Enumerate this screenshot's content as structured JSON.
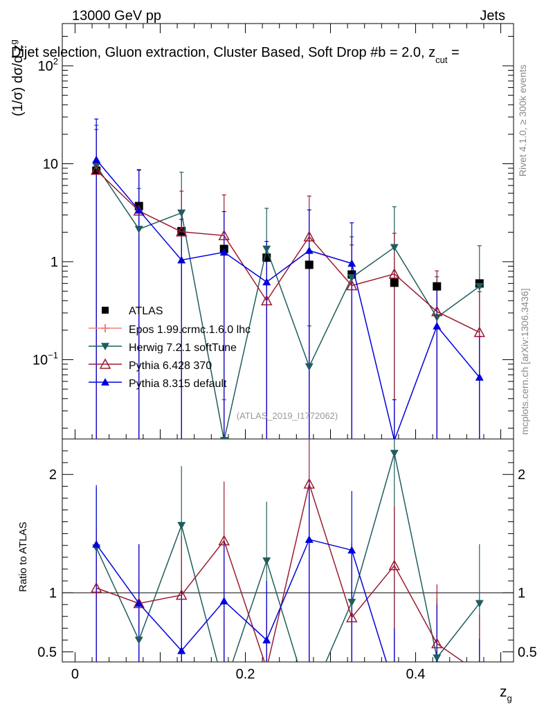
{
  "header": {
    "energy": "13000 GeV pp",
    "category": "Jets",
    "title": "Dijet selection, Gluon extraction, Cluster Based, Soft Drop #b = 2.0, z",
    "title_sub": "cut",
    "title_end": " =",
    "side_label": "Rivet 4.1.0, ≥ 300k events",
    "side_label_bottom": "mcplots.cern.ch [arXiv:1306.3436]",
    "analysis_id": "(ATLAS_2019_I1772062)"
  },
  "axes": {
    "ylabel_main": "(1/σ) dσ/d z",
    "ylabel_main_sub": "g",
    "ylabel_ratio": "Ratio to ATLAS",
    "xlabel": "z",
    "xlabel_sub": "g",
    "main_yticks": [
      {
        "label": "10",
        "sup": "2",
        "value": 100
      },
      {
        "label": "10",
        "sup": "",
        "value": 10
      },
      {
        "label": "1",
        "sup": "",
        "value": 1
      },
      {
        "label": "10",
        "sup": "−1",
        "value": 0.1
      }
    ],
    "ratio_yticks": [
      {
        "label": "2",
        "value": 2
      },
      {
        "label": "1",
        "value": 1
      },
      {
        "label": "0.5",
        "value": 0.5
      }
    ],
    "xticks": [
      {
        "label": "0",
        "value": 0
      },
      {
        "label": "0.2",
        "value": 0.2
      },
      {
        "label": "0.4",
        "value": 0.4
      }
    ]
  },
  "chart_data": {
    "type": "scatter",
    "xlabel": "z_g",
    "ylabel": "(1/σ) dσ/d z_g",
    "xlim": [
      -0.015,
      0.515
    ],
    "ylim": [
      0.0155,
      270
    ],
    "yscale": "log",
    "ratio_ylim": [
      0.415,
      2.3
    ],
    "x": [
      0.025,
      0.075,
      0.125,
      0.175,
      0.225,
      0.275,
      0.325,
      0.375,
      0.425,
      0.475
    ],
    "series": [
      {
        "name": "ATLAS",
        "color": "#000000",
        "marker": "square",
        "values": [
          8.5,
          3.7,
          2.05,
          1.35,
          1.1,
          0.93,
          0.74,
          0.61,
          0.56,
          0.6
        ],
        "ratio": [
          1,
          1,
          1,
          1,
          1,
          1,
          1,
          1,
          1,
          1
        ]
      },
      {
        "name": "Epos 1.99.crmc.1.6.0 lhc",
        "color": "#f08080",
        "marker": "open-cross",
        "values": [],
        "ratio": []
      },
      {
        "name": "Herwig 7.2.1 softTune",
        "color": "#1f5d5d",
        "marker": "triangle-down",
        "values": [
          9.5,
          2.15,
          3.15,
          0.015,
          1.35,
          0.085,
          0.69,
          1.4,
          0.27,
          0.56
        ],
        "ratio": [
          1.38,
          0.6,
          1.57,
          0.2,
          1.27,
          0.09,
          0.92,
          2.18,
          0.45,
          0.91
        ]
      },
      {
        "name": "Pythia 6.428 370",
        "color": "#9b1b30",
        "marker": "open-triangle",
        "values": [
          8.6,
          3.3,
          2.02,
          1.85,
          0.4,
          1.8,
          0.57,
          0.75,
          0.31,
          0.19
        ],
        "ratio": [
          1.04,
          0.91,
          0.98,
          1.44,
          0.36,
          1.92,
          0.79,
          1.23,
          0.57,
          0.32
        ]
      },
      {
        "name": "Pythia 8.315 default",
        "color": "#0000dd",
        "marker": "triangle",
        "values": [
          11.0,
          3.35,
          1.04,
          1.25,
          0.62,
          1.3,
          0.96,
          0.015,
          0.22,
          0.066
        ],
        "ratio": [
          1.41,
          0.91,
          0.51,
          0.93,
          0.6,
          1.45,
          1.36,
          0.2,
          0.4,
          0.11
        ]
      }
    ]
  }
}
